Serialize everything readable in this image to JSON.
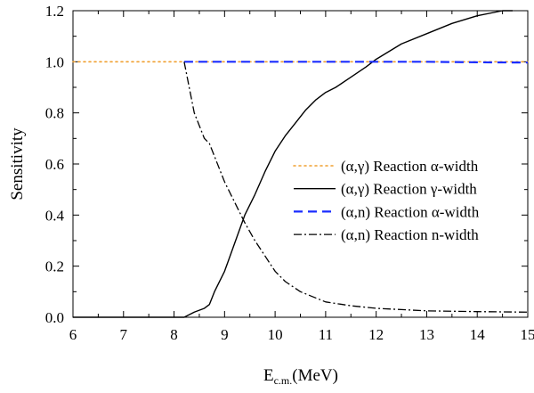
{
  "chart_data": {
    "type": "line",
    "title": "",
    "xlabel": "E",
    "xlabel_subscript": "c.m.",
    "xlabel_unit": "(MeV)",
    "ylabel": "Sensitivity",
    "xlim": [
      6,
      15
    ],
    "ylim": [
      0,
      1.2
    ],
    "x_ticks": [
      6,
      7,
      8,
      9,
      10,
      11,
      12,
      13,
      14,
      15
    ],
    "y_ticks": [
      0.0,
      0.2,
      0.4,
      0.6,
      0.8,
      1.0,
      1.2
    ],
    "y_tick_labels": [
      "0.0",
      "0.2",
      "0.4",
      "0.6",
      "0.8",
      "1.0",
      "1.2"
    ],
    "grid": false,
    "legend_position": "center-right",
    "series": [
      {
        "name": "(α,γ) Reaction α-width",
        "color": "#f0a030",
        "style": "dotted",
        "x": [
          6,
          7,
          8,
          8.2,
          9,
          10,
          11,
          12,
          13,
          14,
          15
        ],
        "y": [
          1.0,
          1.0,
          1.0,
          1.0,
          1.0,
          1.0,
          1.0,
          1.0,
          1.0,
          1.0,
          1.0
        ]
      },
      {
        "name": "(α,γ) Reaction γ-width",
        "color": "#000000",
        "style": "solid",
        "x": [
          6,
          7,
          8,
          8.2,
          8.4,
          8.6,
          8.7,
          8.8,
          9.0,
          9.2,
          9.4,
          9.6,
          9.8,
          10.0,
          10.2,
          10.4,
          10.6,
          10.8,
          11.0,
          11.2,
          11.5,
          11.8,
          12.0,
          12.5,
          13.0,
          13.5,
          14.0,
          14.5,
          14.7
        ],
        "y": [
          0.0,
          0.0,
          0.0,
          0.0,
          0.02,
          0.035,
          0.05,
          0.1,
          0.18,
          0.29,
          0.4,
          0.48,
          0.57,
          0.65,
          0.71,
          0.76,
          0.81,
          0.85,
          0.88,
          0.9,
          0.94,
          0.98,
          1.01,
          1.07,
          1.11,
          1.15,
          1.18,
          1.2,
          1.2
        ]
      },
      {
        "name": "(α,n) Reaction α-width",
        "color": "#1a2cff",
        "style": "dashed",
        "x": [
          8.2,
          9,
          10,
          11,
          12,
          13,
          14,
          15
        ],
        "y": [
          1.0,
          1.0,
          1.0,
          1.0,
          1.0,
          1.0,
          0.998,
          0.997
        ]
      },
      {
        "name": "(α,n) Reaction n-width",
        "color": "#000000",
        "style": "dashdot",
        "x": [
          8.2,
          8.3,
          8.4,
          8.5,
          8.6,
          8.7,
          8.8,
          9.0,
          9.2,
          9.4,
          9.6,
          9.8,
          10.0,
          10.2,
          10.5,
          11.0,
          11.5,
          12.0,
          12.5,
          13.0,
          14.0,
          15.0
        ],
        "y": [
          1.0,
          0.9,
          0.8,
          0.75,
          0.7,
          0.68,
          0.63,
          0.53,
          0.45,
          0.37,
          0.3,
          0.24,
          0.18,
          0.14,
          0.1,
          0.06,
          0.045,
          0.035,
          0.03,
          0.025,
          0.022,
          0.02
        ]
      }
    ]
  }
}
